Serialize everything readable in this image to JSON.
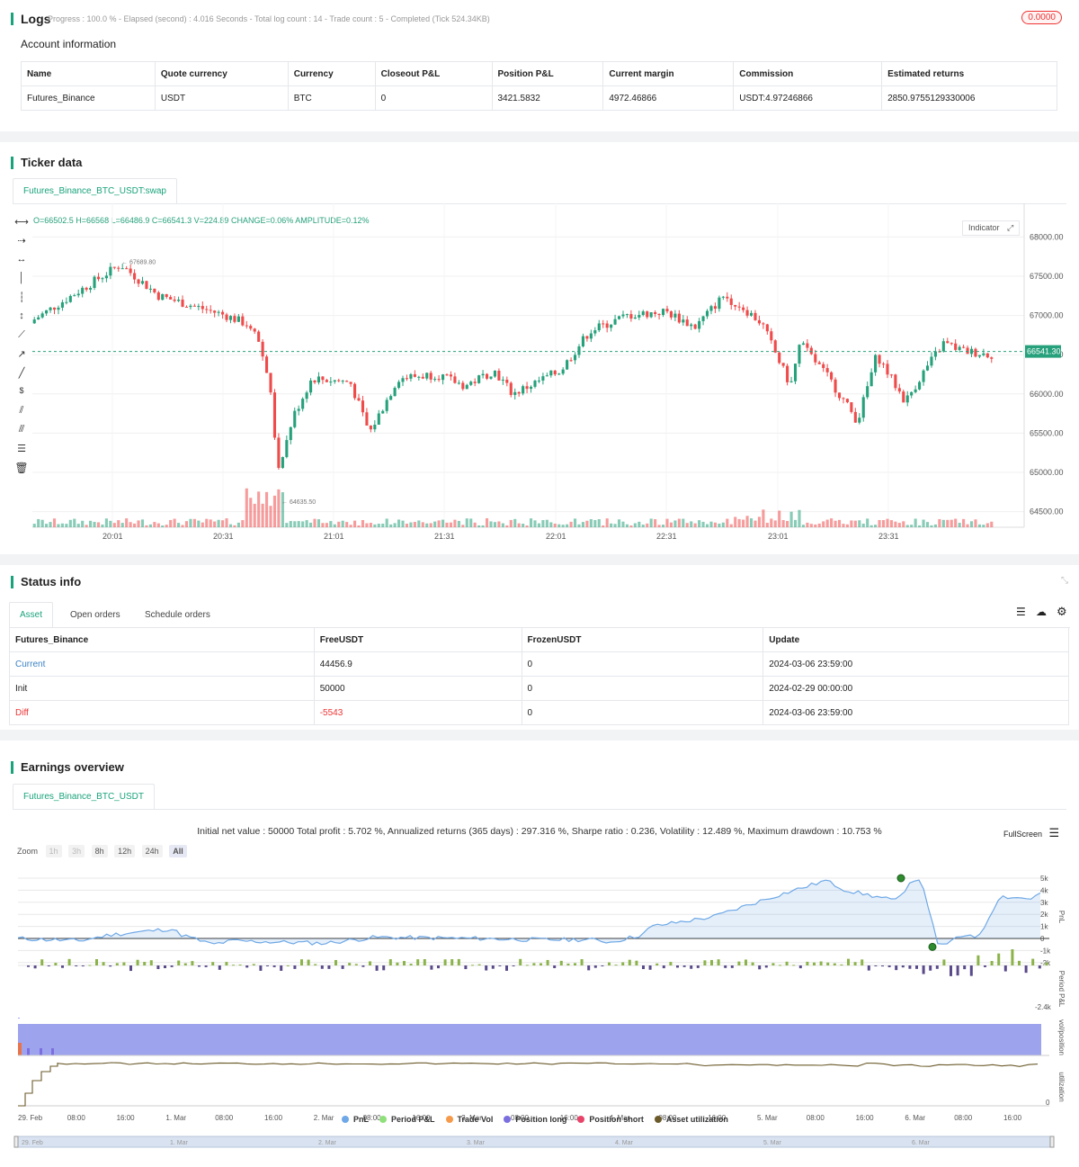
{
  "logs": {
    "title": "Logs",
    "status": "Progress : 100.0 % - Elapsed (second) : 4.016  Seconds - Total log count : 14 - Trade count : 5 - Completed (Tick 524.34KB)",
    "badge": "0.0000"
  },
  "account": {
    "title": "Account information",
    "headers": [
      "Name",
      "Quote currency",
      "Currency",
      "Closeout P&L",
      "Position P&L",
      "Current margin",
      "Commission",
      "Estimated returns"
    ],
    "row": [
      "Futures_Binance",
      "USDT",
      "BTC",
      "0",
      "3421.5832",
      "4972.46866",
      "USDT:4.97246866",
      "2850.9755129330006"
    ]
  },
  "ticker": {
    "title": "Ticker data",
    "tab": "Futures_Binance_BTC_USDT:swap",
    "ohlc": "O=66502.5 H=66568 L=66486.9 C=66541.3 V=224.89 CHANGE=0.06% AMPLITUDE=0.12%",
    "indicator_label": "Indicator",
    "price_label": "66541.30",
    "high_mark": "67689.80",
    "low_mark": "64635.50",
    "y_ticks": [
      "68000.00",
      "67500.00",
      "67000.00",
      "66500.00",
      "66000.00",
      "65500.00",
      "65000.00",
      "64500.00"
    ],
    "x_ticks": [
      "20:01",
      "20:31",
      "21:01",
      "21:31",
      "22:01",
      "22:31",
      "23:01",
      "23:31"
    ],
    "colors": {
      "up": "#26a17b",
      "down": "#ef4b4b"
    }
  },
  "status": {
    "title": "Status info",
    "tabs": [
      "Asset",
      "Open orders",
      "Schedule orders"
    ],
    "headers": [
      "Futures_Binance",
      "FreeUSDT",
      "FrozenUSDT",
      "Update"
    ],
    "rows": [
      [
        "Current",
        "44456.9",
        "0",
        "2024-03-06 23:59:00"
      ],
      [
        "Init",
        "50000",
        "0",
        "2024-02-29 00:00:00"
      ],
      [
        "Diff",
        "-5543",
        "0",
        "2024-03-06 23:59:00"
      ]
    ]
  },
  "earnings": {
    "title": "Earnings overview",
    "tab": "Futures_Binance_BTC_USDT",
    "summary": "Initial net value : 50000 Total profit : 5.702 %, Annualized returns (365 days) : 297.316 %, Sharpe ratio : 0.236, Volatility : 12.489 %, Maximum drawdown : 10.753 %",
    "fullscreen": "FullScreen",
    "zoom_label": "Zoom",
    "zoom": [
      "1h",
      "3h",
      "8h",
      "12h",
      "24h",
      "All"
    ],
    "pnl_ticks": [
      "5k",
      "4k",
      "3k",
      "2k",
      "1k",
      "0",
      "-1k",
      "-2k"
    ],
    "period_tick": "-2.4k",
    "util_tick": "0",
    "axis_titles": [
      "PnL",
      "Period P&L",
      "vol/position",
      "utilization"
    ],
    "x_ticks": [
      "29. Feb",
      "08:00",
      "16:00",
      "1. Mar",
      "08:00",
      "16:00",
      "2. Mar",
      "08:00",
      "16:00",
      "3. Mar",
      "08:00",
      "16:00",
      "4. Mar",
      "08:00",
      "16:00",
      "5. Mar",
      "08:00",
      "16:00",
      "6. Mar",
      "08:00",
      "16:00"
    ],
    "nav_ticks": [
      "29. Feb",
      "1. Mar",
      "2. Mar",
      "3. Mar",
      "4. Mar",
      "5. Mar",
      "6. Mar"
    ],
    "legend": [
      {
        "name": "PnL",
        "color": "#6ea8e6"
      },
      {
        "name": "Period P&L",
        "color": "#8fe07a"
      },
      {
        "name": "Trade Vol",
        "color": "#f59a4a"
      },
      {
        "name": "Position long",
        "color": "#7b6fe0"
      },
      {
        "name": "Position short",
        "color": "#e8446a"
      },
      {
        "name": "Asset utilization",
        "color": "#6b5a2a"
      }
    ]
  }
}
